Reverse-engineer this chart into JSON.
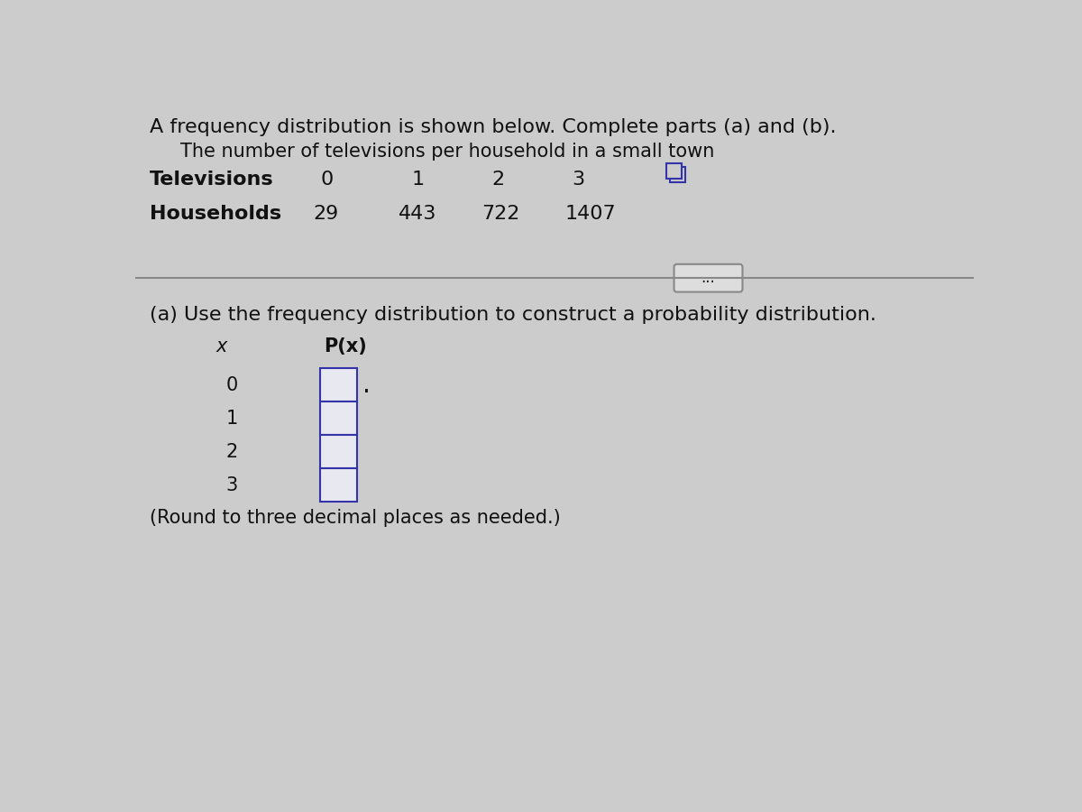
{
  "background_color": "#cccccc",
  "title_text": "A frequency distribution is shown below. Complete parts (a) and (b).",
  "subtitle_text": "The number of televisions per household in a small town",
  "row1_label": "Televisions",
  "row2_label": "Households",
  "televisions": [
    "0",
    "1",
    "2",
    "3"
  ],
  "households": [
    "29",
    "443",
    "722",
    "1407"
  ],
  "part_a_text": "(a) Use the frequency distribution to construct a probability distribution.",
  "col_x_label": "x",
  "col_px_label": "P(x)",
  "x_values": [
    "0",
    "1",
    "2",
    "3"
  ],
  "round_note": "(Round to three decimal places as needed.)",
  "dots_button_text": "...",
  "font_color": "#111111",
  "box_fill_color": "#e8e8f0",
  "box_edge_color": "#3333aa",
  "divider_color": "#888888",
  "icon_color": "#3333aa",
  "btn_fill": "#dddddd",
  "btn_edge": "#888888"
}
